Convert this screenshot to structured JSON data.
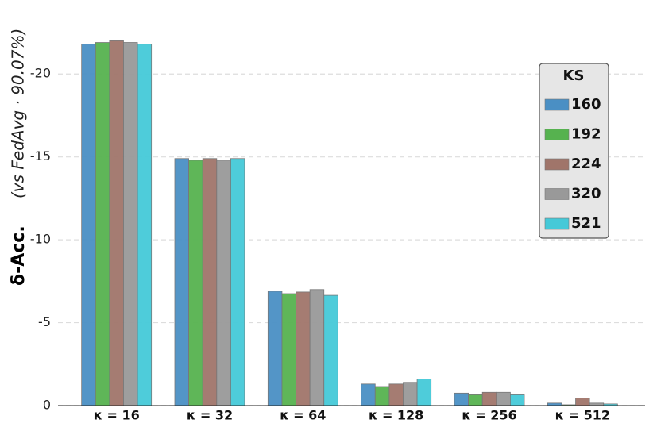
{
  "chart_data": {
    "type": "bar",
    "ylabel": "δ-Acc.",
    "ylabel_note": "(vs FedAvg · 90.07%)",
    "categories": [
      "κ = 16",
      "κ = 32",
      "κ = 64",
      "κ = 128",
      "κ = 256",
      "κ = 512"
    ],
    "series": [
      {
        "name": "160",
        "color": "#4a8fc4",
        "values": [
          -21.8,
          -14.9,
          -6.9,
          -1.3,
          -0.75,
          -0.15
        ]
      },
      {
        "name": "192",
        "color": "#56b24f",
        "values": [
          -21.9,
          -14.8,
          -6.75,
          -1.15,
          -0.65,
          -0.05
        ]
      },
      {
        "name": "224",
        "color": "#a0756a",
        "values": [
          -22.0,
          -14.9,
          -6.85,
          -1.3,
          -0.8,
          -0.45
        ]
      },
      {
        "name": "320",
        "color": "#999999",
        "values": [
          -21.9,
          -14.8,
          -7.0,
          -1.4,
          -0.8,
          -0.15
        ]
      },
      {
        "name": "521",
        "color": "#45c9d8",
        "values": [
          -21.8,
          -14.9,
          -6.65,
          -1.6,
          -0.65,
          -0.1
        ]
      }
    ],
    "legend_title": "KS",
    "legend": "upper right",
    "ylim": [
      0,
      -22.5
    ],
    "yticks": [
      0,
      -5,
      -10,
      -15,
      -20
    ],
    "grid": true
  }
}
